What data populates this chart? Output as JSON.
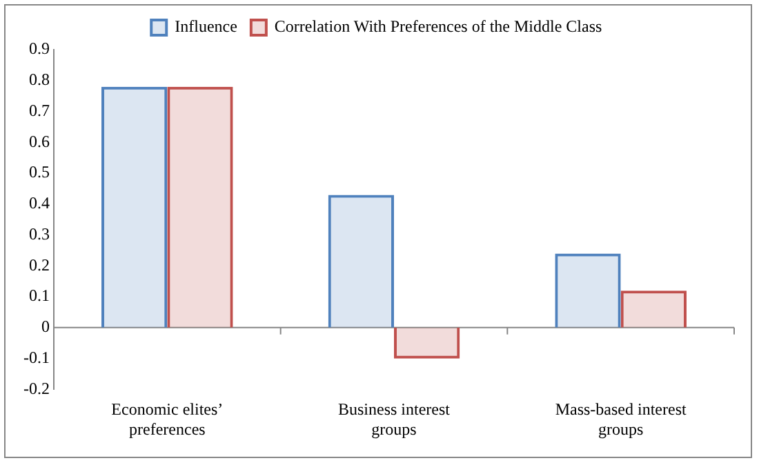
{
  "chart_data": {
    "type": "bar",
    "categories": [
      "Economic elites’ preferences",
      "Business interest groups",
      "Mass-based interest groups"
    ],
    "series": [
      {
        "name": "Influence",
        "color": "#4f81bd",
        "values": [
          0.78,
          0.43,
          0.24
        ]
      },
      {
        "name": "Correlation With Preferences of the Middle Class",
        "color": "#c0504d",
        "values": [
          0.78,
          -0.1,
          0.12
        ]
      }
    ],
    "ylim": [
      -0.2,
      0.9
    ],
    "yticks": [
      -0.2,
      -0.1,
      0,
      0.1,
      0.2,
      0.3,
      0.4,
      0.5,
      0.6,
      0.7,
      0.8,
      0.9
    ],
    "grid": false,
    "ref_lines": [
      {
        "axis": "y",
        "value": 0,
        "color": "#868686"
      }
    ],
    "legend": "top"
  }
}
